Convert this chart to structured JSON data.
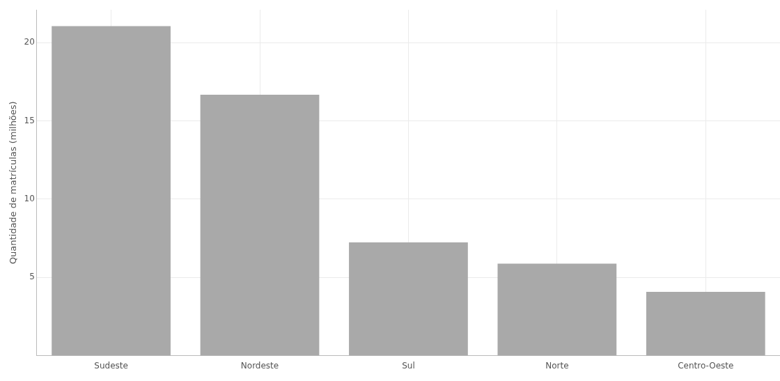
{
  "chart_data": {
    "type": "bar",
    "ylabel": "Quantidade de matrículas (milhões)",
    "categories": [
      "Sudeste",
      "Nordeste",
      "Sul",
      "Norte",
      "Centro-Oeste"
    ],
    "values": [
      21.05,
      16.67,
      7.24,
      5.88,
      4.08
    ],
    "color": "#a9a9a9",
    "ylim": [
      0,
      22.1
    ],
    "yticks": [
      5,
      10,
      15,
      20
    ],
    "grid": true,
    "legend": false
  }
}
